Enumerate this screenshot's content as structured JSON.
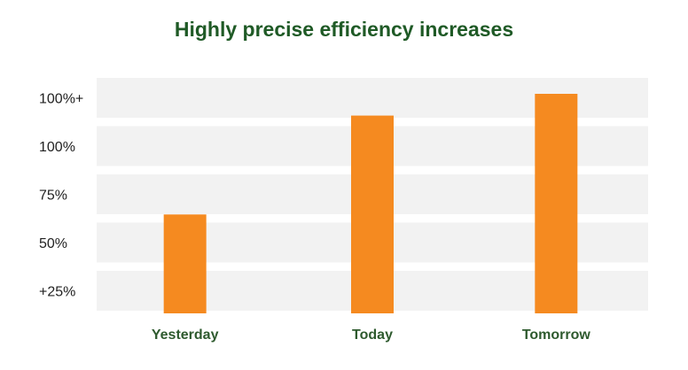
{
  "chart_data": {
    "type": "bar",
    "title": "Highly precise efficiency increases",
    "xlabel": "",
    "ylabel": "",
    "categories": [
      "Yesterday",
      "Today",
      "Tomorrow"
    ],
    "values": [
      50,
      100,
      111
    ],
    "ytick_labels": [
      "100%+",
      "100%",
      "75%",
      "50%",
      "+25%"
    ],
    "ylim": [
      0,
      125
    ],
    "grid": "horizontal bands",
    "legend": "none",
    "colors": {
      "bar": "#f58a20",
      "band": "#f2f2f2",
      "title": "#1f5a26",
      "category_label": "#2e5a2e",
      "tick_label": "#222222"
    }
  }
}
